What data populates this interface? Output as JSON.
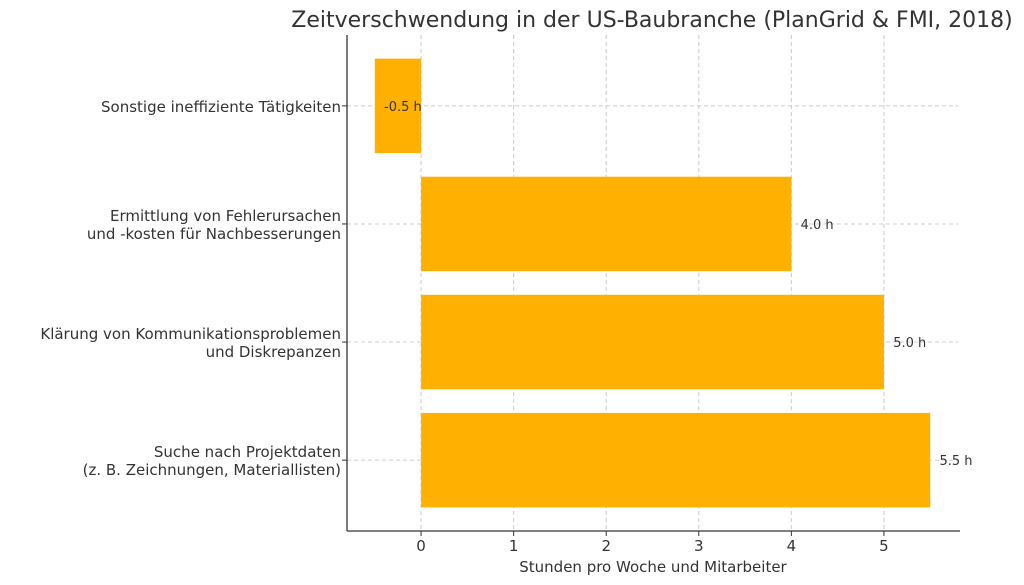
{
  "chart_data": {
    "type": "bar",
    "orientation": "horizontal",
    "title": "Zeitverschwendung in der US-Baubranche (PlanGrid & FMI, 2018)",
    "xlabel": "Stunden pro Woche und Mitarbeiter",
    "ylabel": "",
    "categories": [
      [
        "Suche nach Projektdaten",
        "(z. B. Zeichnungen, Materiallisten)"
      ],
      [
        "Klärung von Kommunikationsproblemen",
        "und Diskrepanzen"
      ],
      [
        "Ermittlung von Fehlerursachen",
        "und -kosten für Nachbesserungen"
      ],
      [
        "Sonstige ineffiziente Tätigkeiten"
      ]
    ],
    "values": [
      5.5,
      5.0,
      4.0,
      -0.5
    ],
    "data_labels": [
      "5.5 h",
      "5.0 h",
      "4.0 h",
      "-0.5 h"
    ],
    "xticks": [
      0,
      1,
      2,
      3,
      4,
      5
    ],
    "xlim": [
      -0.8,
      5.8
    ],
    "ylim": [
      -0.6,
      3.6
    ],
    "grid": true,
    "bar_color": "#FFB000"
  }
}
